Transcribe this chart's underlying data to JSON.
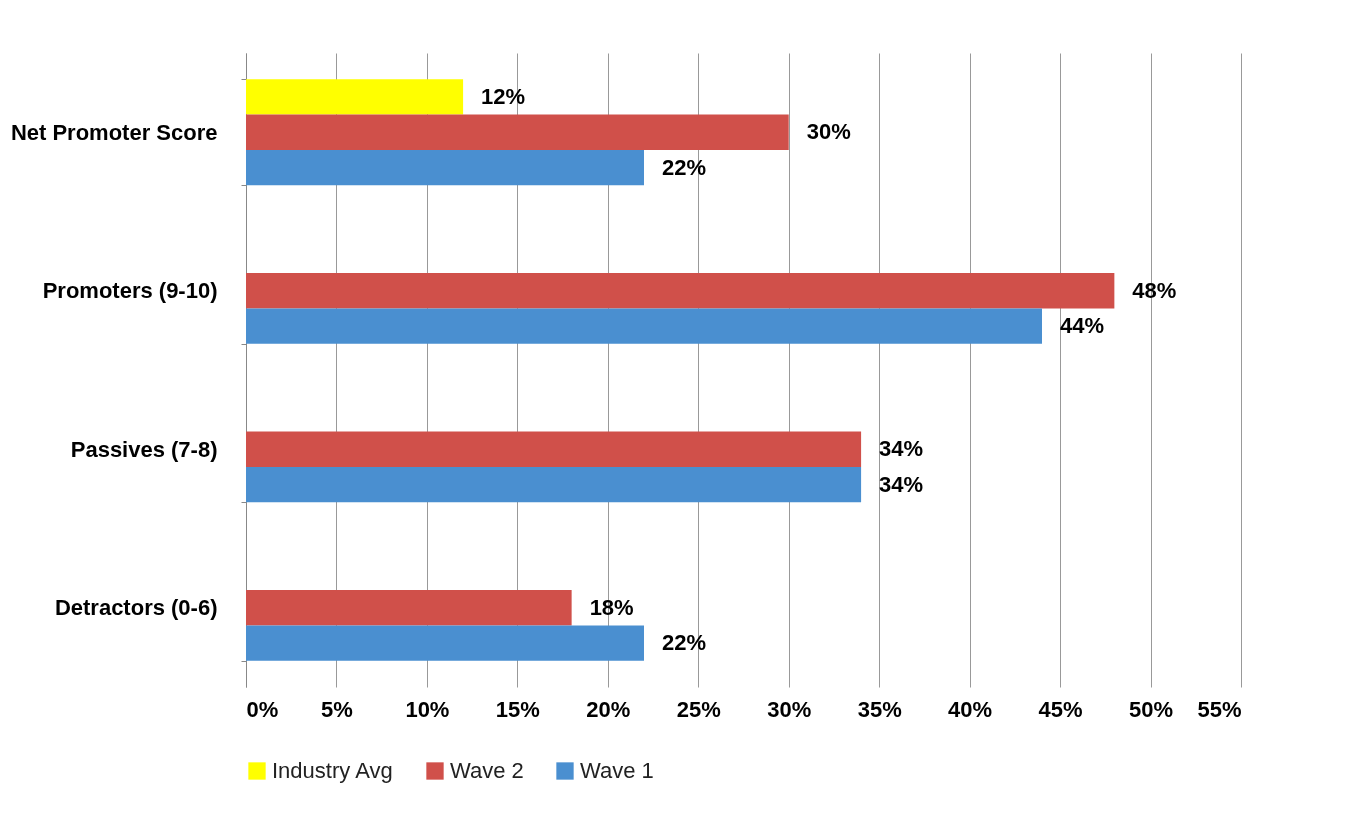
{
  "chart_data": {
    "type": "bar",
    "orientation": "horizontal",
    "categories": [
      "Net Promoter Score",
      "Promoters (9-10)",
      "Passives (7-8)",
      "Detractors (0-6)"
    ],
    "series": [
      {
        "name": "Industry Avg",
        "color": "#ffff00",
        "values": [
          12,
          null,
          null,
          null
        ],
        "value_labels": [
          "12%",
          null,
          null,
          null
        ]
      },
      {
        "name": "Wave 2",
        "color": "#d0504a",
        "values": [
          30,
          48,
          34,
          18
        ],
        "value_labels": [
          "30%",
          "48%",
          "34%",
          "18%"
        ]
      },
      {
        "name": "Wave 1",
        "color": "#4a8fd0",
        "values": [
          22,
          44,
          34,
          22
        ],
        "value_labels": [
          "22%",
          "44%",
          "34%",
          "22%"
        ]
      }
    ],
    "xlim": [
      0,
      55
    ],
    "xticks": [
      {
        "value": 0,
        "label": "0%"
      },
      {
        "value": 5,
        "label": "5%"
      },
      {
        "value": 10,
        "label": "10%"
      },
      {
        "value": 15,
        "label": "15%"
      },
      {
        "value": 20,
        "label": "20%"
      },
      {
        "value": 25,
        "label": "25%"
      },
      {
        "value": 30,
        "label": "30%"
      },
      {
        "value": 35,
        "label": "35%"
      },
      {
        "value": 40,
        "label": "40%"
      },
      {
        "value": 45,
        "label": "45%"
      },
      {
        "value": 50,
        "label": "50%"
      },
      {
        "value": 55,
        "label": "55%"
      }
    ],
    "grid": "x",
    "legend": "bottom"
  }
}
